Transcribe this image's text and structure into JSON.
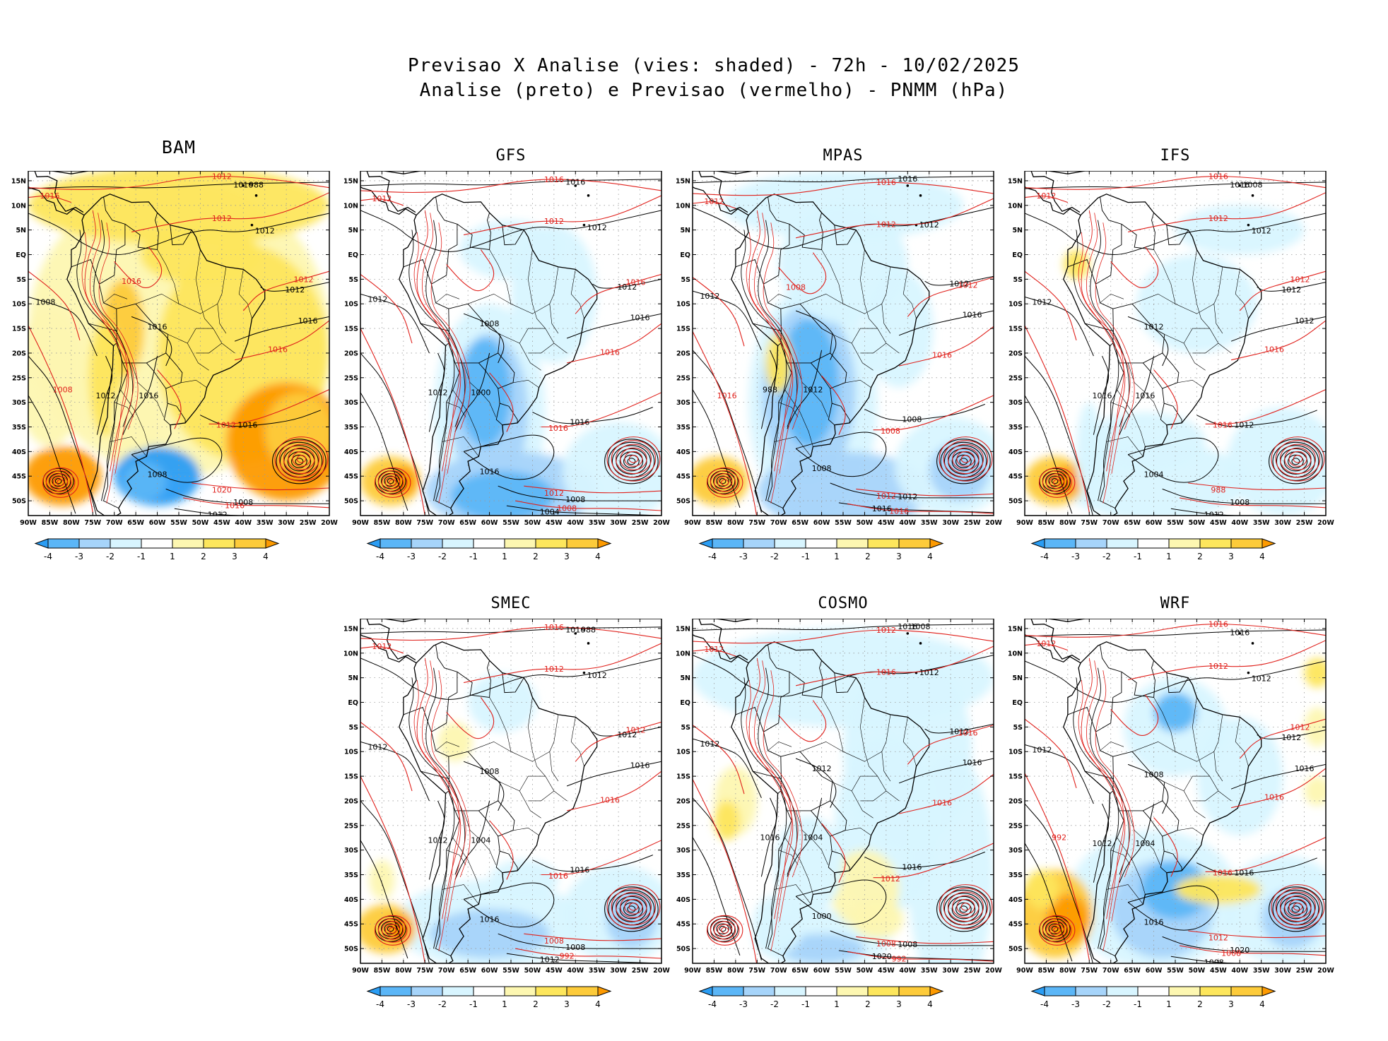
{
  "header": {
    "title_line1": "Previsao X Analise (vies: shaded) - 72h - 10/02/2025",
    "title_line2": "Analise (preto) e Previsao (vermelho) - PNMM (hPa)"
  },
  "axes": {
    "lat_labels": [
      "15N",
      "10N",
      "5N",
      "EQ",
      "5S",
      "10S",
      "15S",
      "20S",
      "25S",
      "30S",
      "35S",
      "40S",
      "45S",
      "50S"
    ],
    "lon_labels": [
      "90W",
      "85W",
      "80W",
      "75W",
      "70W",
      "65W",
      "60W",
      "55W",
      "50W",
      "45W",
      "40W",
      "35W",
      "30W",
      "25W",
      "20W"
    ]
  },
  "colorbar": {
    "labels": [
      "-4",
      "-3",
      "-2",
      "-1",
      "1",
      "2",
      "3",
      "4"
    ],
    "colors": [
      "#2a9df4",
      "#5bb6f7",
      "#a6d4fa",
      "#d8f5ff",
      "#ffffff",
      "#fdf7b1",
      "#fde65c",
      "#fdcb3a",
      "#fd9a00"
    ]
  },
  "colors": {
    "analysis": "#000000",
    "forecast": "#e0211c",
    "map_lines": "#000000",
    "grid": "#9a9a9a"
  },
  "panels": [
    {
      "name": "BAM",
      "isobars_analysis": [
        "1016",
        "1012",
        "1008",
        "1012",
        "1016",
        "1016",
        "1008",
        "1012",
        "1016",
        "1008",
        "1012",
        "1016",
        "988"
      ],
      "isobars_forecast": [
        "1012",
        "1016",
        "1012",
        "1012",
        "1016",
        "1012",
        "1020",
        "1016",
        "1008",
        "1016"
      ]
    },
    {
      "name": "GFS",
      "isobars_analysis": [
        "1016",
        "1012",
        "1012",
        "1012",
        "1016",
        "1016",
        "1008",
        "1004",
        "1000",
        "1016",
        "1012",
        "1008"
      ],
      "isobars_forecast": [
        "1016",
        "1012",
        "1012",
        "1016",
        "1016",
        "1016",
        "1012",
        "1008"
      ]
    },
    {
      "name": "MPAS",
      "isobars_analysis": [
        "1016",
        "1012",
        "1012",
        "1012",
        "1016",
        "1008",
        "1012",
        "1016",
        "1012",
        "1008",
        "988"
      ],
      "isobars_forecast": [
        "1016",
        "1012",
        "1012",
        "1012",
        "1016",
        "1008",
        "1012",
        "1016",
        "1016",
        "1008"
      ]
    },
    {
      "name": "IFS",
      "isobars_analysis": [
        "1016",
        "1012",
        "1012",
        "1012",
        "1012",
        "1012",
        "1008",
        "1012",
        "1016",
        "1004",
        "1016",
        "1012",
        "1008"
      ],
      "isobars_forecast": [
        "1016",
        "1012",
        "1012",
        "1012",
        "1016",
        "1016",
        "988"
      ]
    },
    {
      "name": "SMEC",
      "isobars_analysis": [
        "1016",
        "1012",
        "1012",
        "1012",
        "1016",
        "1016",
        "1008",
        "1012",
        "1004",
        "1016",
        "1012",
        "1008",
        "988"
      ],
      "isobars_forecast": [
        "1016",
        "1012",
        "1012",
        "1012",
        "1016",
        "1016",
        "1008",
        "992"
      ]
    },
    {
      "name": "COSMO",
      "isobars_analysis": [
        "1016",
        "1012",
        "1012",
        "1012",
        "1016",
        "1016",
        "1008",
        "1020",
        "1004",
        "1000",
        "1016",
        "1012",
        "1008"
      ],
      "isobars_forecast": [
        "1012",
        "1012",
        "1016",
        "1016",
        "1016",
        "1012",
        "1008",
        "992"
      ]
    },
    {
      "name": "WRF",
      "isobars_analysis": [
        "1016",
        "1012",
        "1012",
        "1012",
        "1016",
        "1016",
        "1020",
        "1008",
        "1004",
        "1016",
        "1012",
        "1008"
      ],
      "isobars_forecast": [
        "1016",
        "1012",
        "1012",
        "1012",
        "1016",
        "1016",
        "1012",
        "1008",
        "992"
      ]
    }
  ]
}
